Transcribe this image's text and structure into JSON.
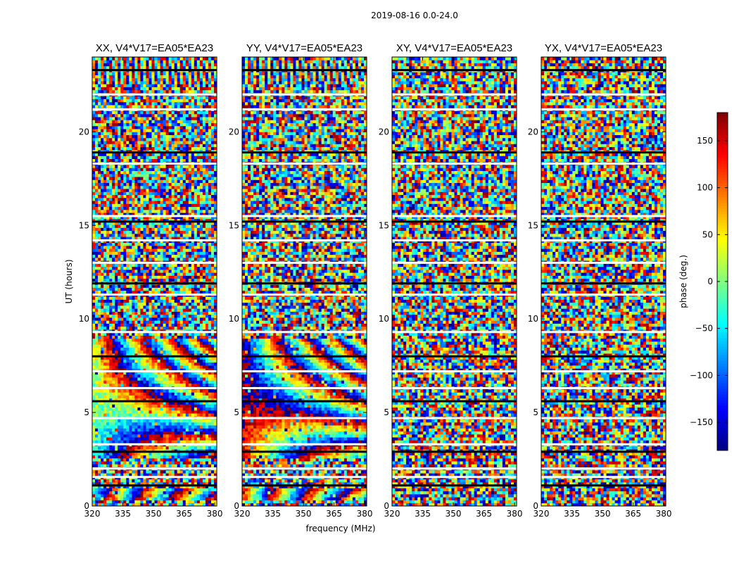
{
  "figure": {
    "suptitle": "2019-08-16 0.0-24.0"
  },
  "chart_data": {
    "type": "heatmap",
    "shared": {
      "xlabel": "frequency (MHz)",
      "ylabel": "UT (hours)",
      "xlim": [
        320,
        381
      ],
      "ylim": [
        0,
        24
      ],
      "xticks": [
        320,
        335,
        350,
        365,
        380
      ],
      "yticks": [
        0,
        5,
        10,
        15,
        20
      ]
    },
    "panels": [
      {
        "title": "XX, V4*V17=EA05*EA23",
        "pattern": "fringe",
        "phase_offset": 0
      },
      {
        "title": "YY, V4*V17=EA05*EA23",
        "pattern": "fringe",
        "phase_offset": 160
      },
      {
        "title": "XY, V4*V17=EA05*EA23",
        "pattern": "noise"
      },
      {
        "title": "YX, V4*V17=EA05*EA23",
        "pattern": "noise"
      }
    ],
    "flagged_hours": [
      1.1,
      1.55,
      2.0,
      2.9,
      3.3,
      4.7,
      5.6,
      6.3,
      7.2,
      8.0,
      9.3,
      11.3,
      11.9,
      13.0,
      14.2,
      15.2,
      15.5,
      18.3,
      18.9,
      21.2,
      22.0,
      23.3
    ],
    "colorbar": {
      "label": "phase (deg.)",
      "range": [
        -180,
        180
      ],
      "ticks": [
        -150,
        -100,
        -50,
        0,
        50,
        100,
        150
      ],
      "tick_labels": [
        "−150",
        "−100",
        "−50",
        "0",
        "50",
        "100",
        "150"
      ],
      "colormap": "jet"
    }
  }
}
